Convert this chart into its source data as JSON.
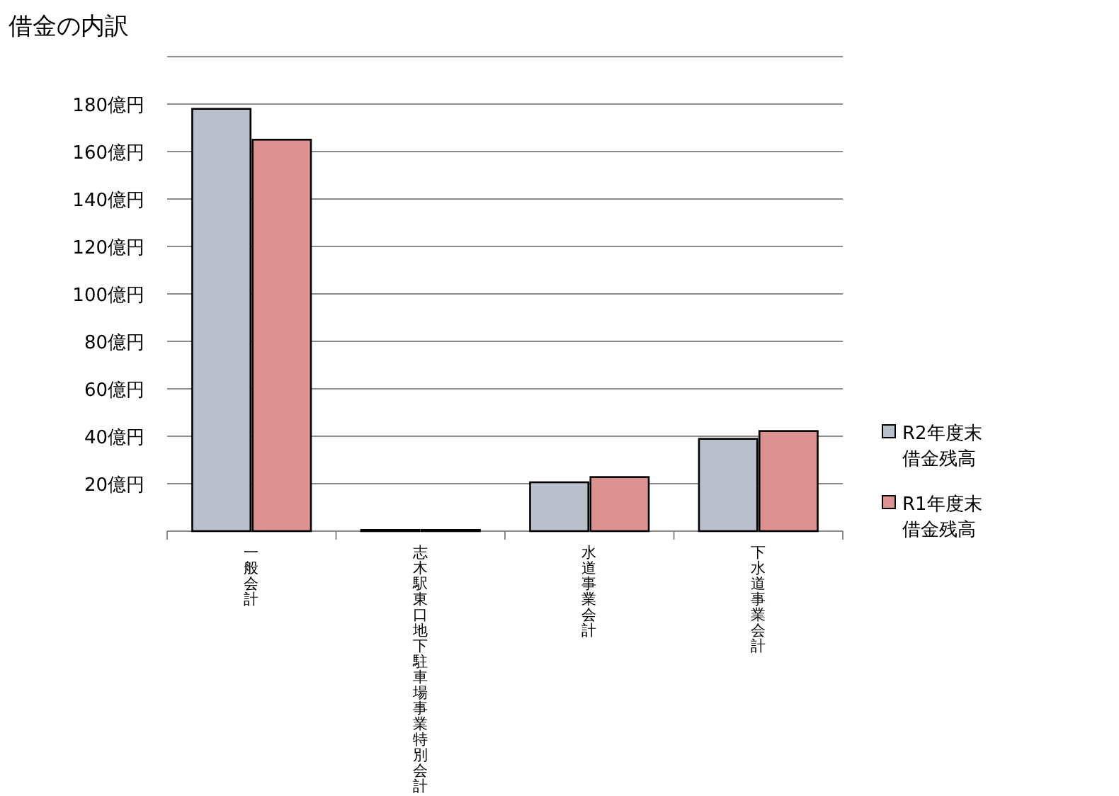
{
  "chart_data": {
    "type": "bar",
    "title": "借金の内訳",
    "categories": [
      "一般会計",
      "志木駅東口地下駐車場事業特別会計",
      "水道事業会計",
      "下水道事業会計"
    ],
    "series": [
      {
        "name": "R2年度末借金残高",
        "color": "#b9bfcb",
        "values": [
          178,
          0.5,
          20.6,
          38.9
        ]
      },
      {
        "name": "R1年度末借金残高",
        "color": "#dd9191",
        "values": [
          165,
          0.5,
          22.8,
          42.2
        ]
      }
    ],
    "ylim": [
      0,
      200
    ],
    "yticks": [
      {
        "value": 0,
        "label": null
      },
      {
        "value": 20,
        "label": "20億円"
      },
      {
        "value": 40,
        "label": "40億円"
      },
      {
        "value": 60,
        "label": "60億円"
      },
      {
        "value": 80,
        "label": "80億円"
      },
      {
        "value": 100,
        "label": "100億円"
      },
      {
        "value": 120,
        "label": "120億円"
      },
      {
        "value": 140,
        "label": "140億円"
      },
      {
        "value": 160,
        "label": "160億円"
      },
      {
        "value": 180,
        "label": "180億円"
      },
      {
        "value": 200,
        "label": null
      }
    ],
    "grid": "y",
    "legend": "right"
  }
}
